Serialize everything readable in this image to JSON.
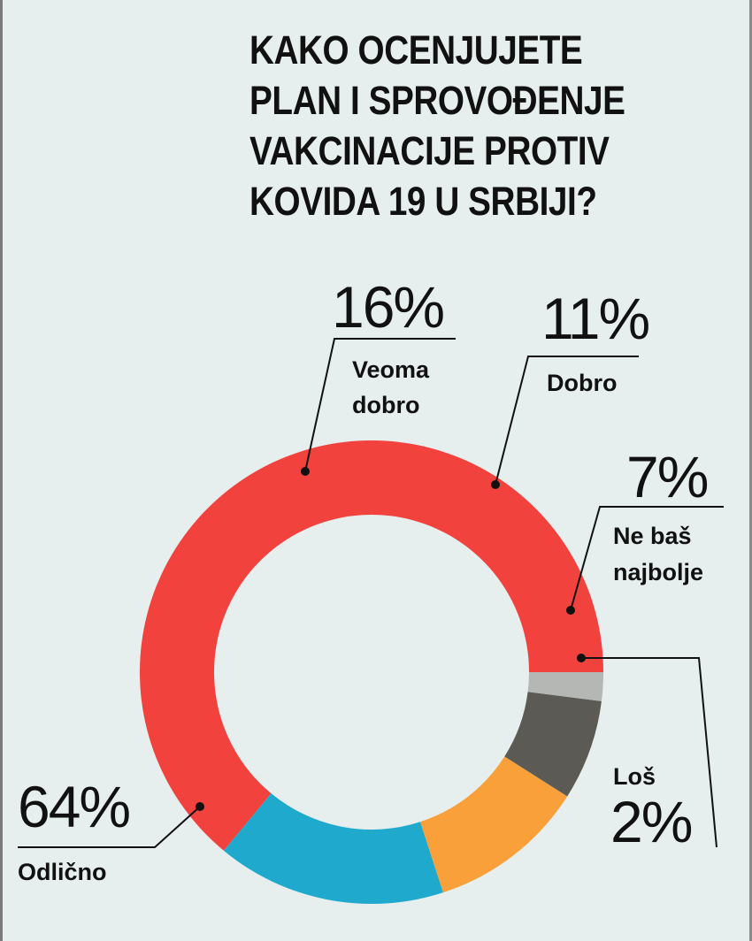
{
  "title_lines": [
    "KAKO OCENJUJETE",
    "PLAN I SPROVOĐENJE",
    "VAKCINACIJE PROTIV",
    "KOVIDA 19 U SRBIJI?"
  ],
  "chart_data": {
    "type": "pie",
    "title": "KAKO OCENJUJETE PLAN I SPROVOĐENJE VAKCINACIJE PROTIV KOVIDA 19 U SRBIJI?",
    "style": "donut",
    "slices": [
      {
        "label": "Odlično",
        "value": 64,
        "display": "64%",
        "color": "#f2423d"
      },
      {
        "label": "Veoma dobro",
        "value": 16,
        "display": "16%",
        "color": "#1fa9cd"
      },
      {
        "label": "Dobro",
        "value": 11,
        "display": "11%",
        "color": "#f9a03a"
      },
      {
        "label": "Ne baš najbolje",
        "value": 7,
        "display": "7%",
        "color": "#5b5a55"
      },
      {
        "label": "Loš",
        "value": 2,
        "display": "2%",
        "color": "#b5b7b5"
      }
    ],
    "label_lines": {
      "Veoma dobro": [
        "Veoma",
        "dobro"
      ],
      "Ne baš najbolje": [
        "Ne baš",
        "najbolje"
      ]
    }
  }
}
